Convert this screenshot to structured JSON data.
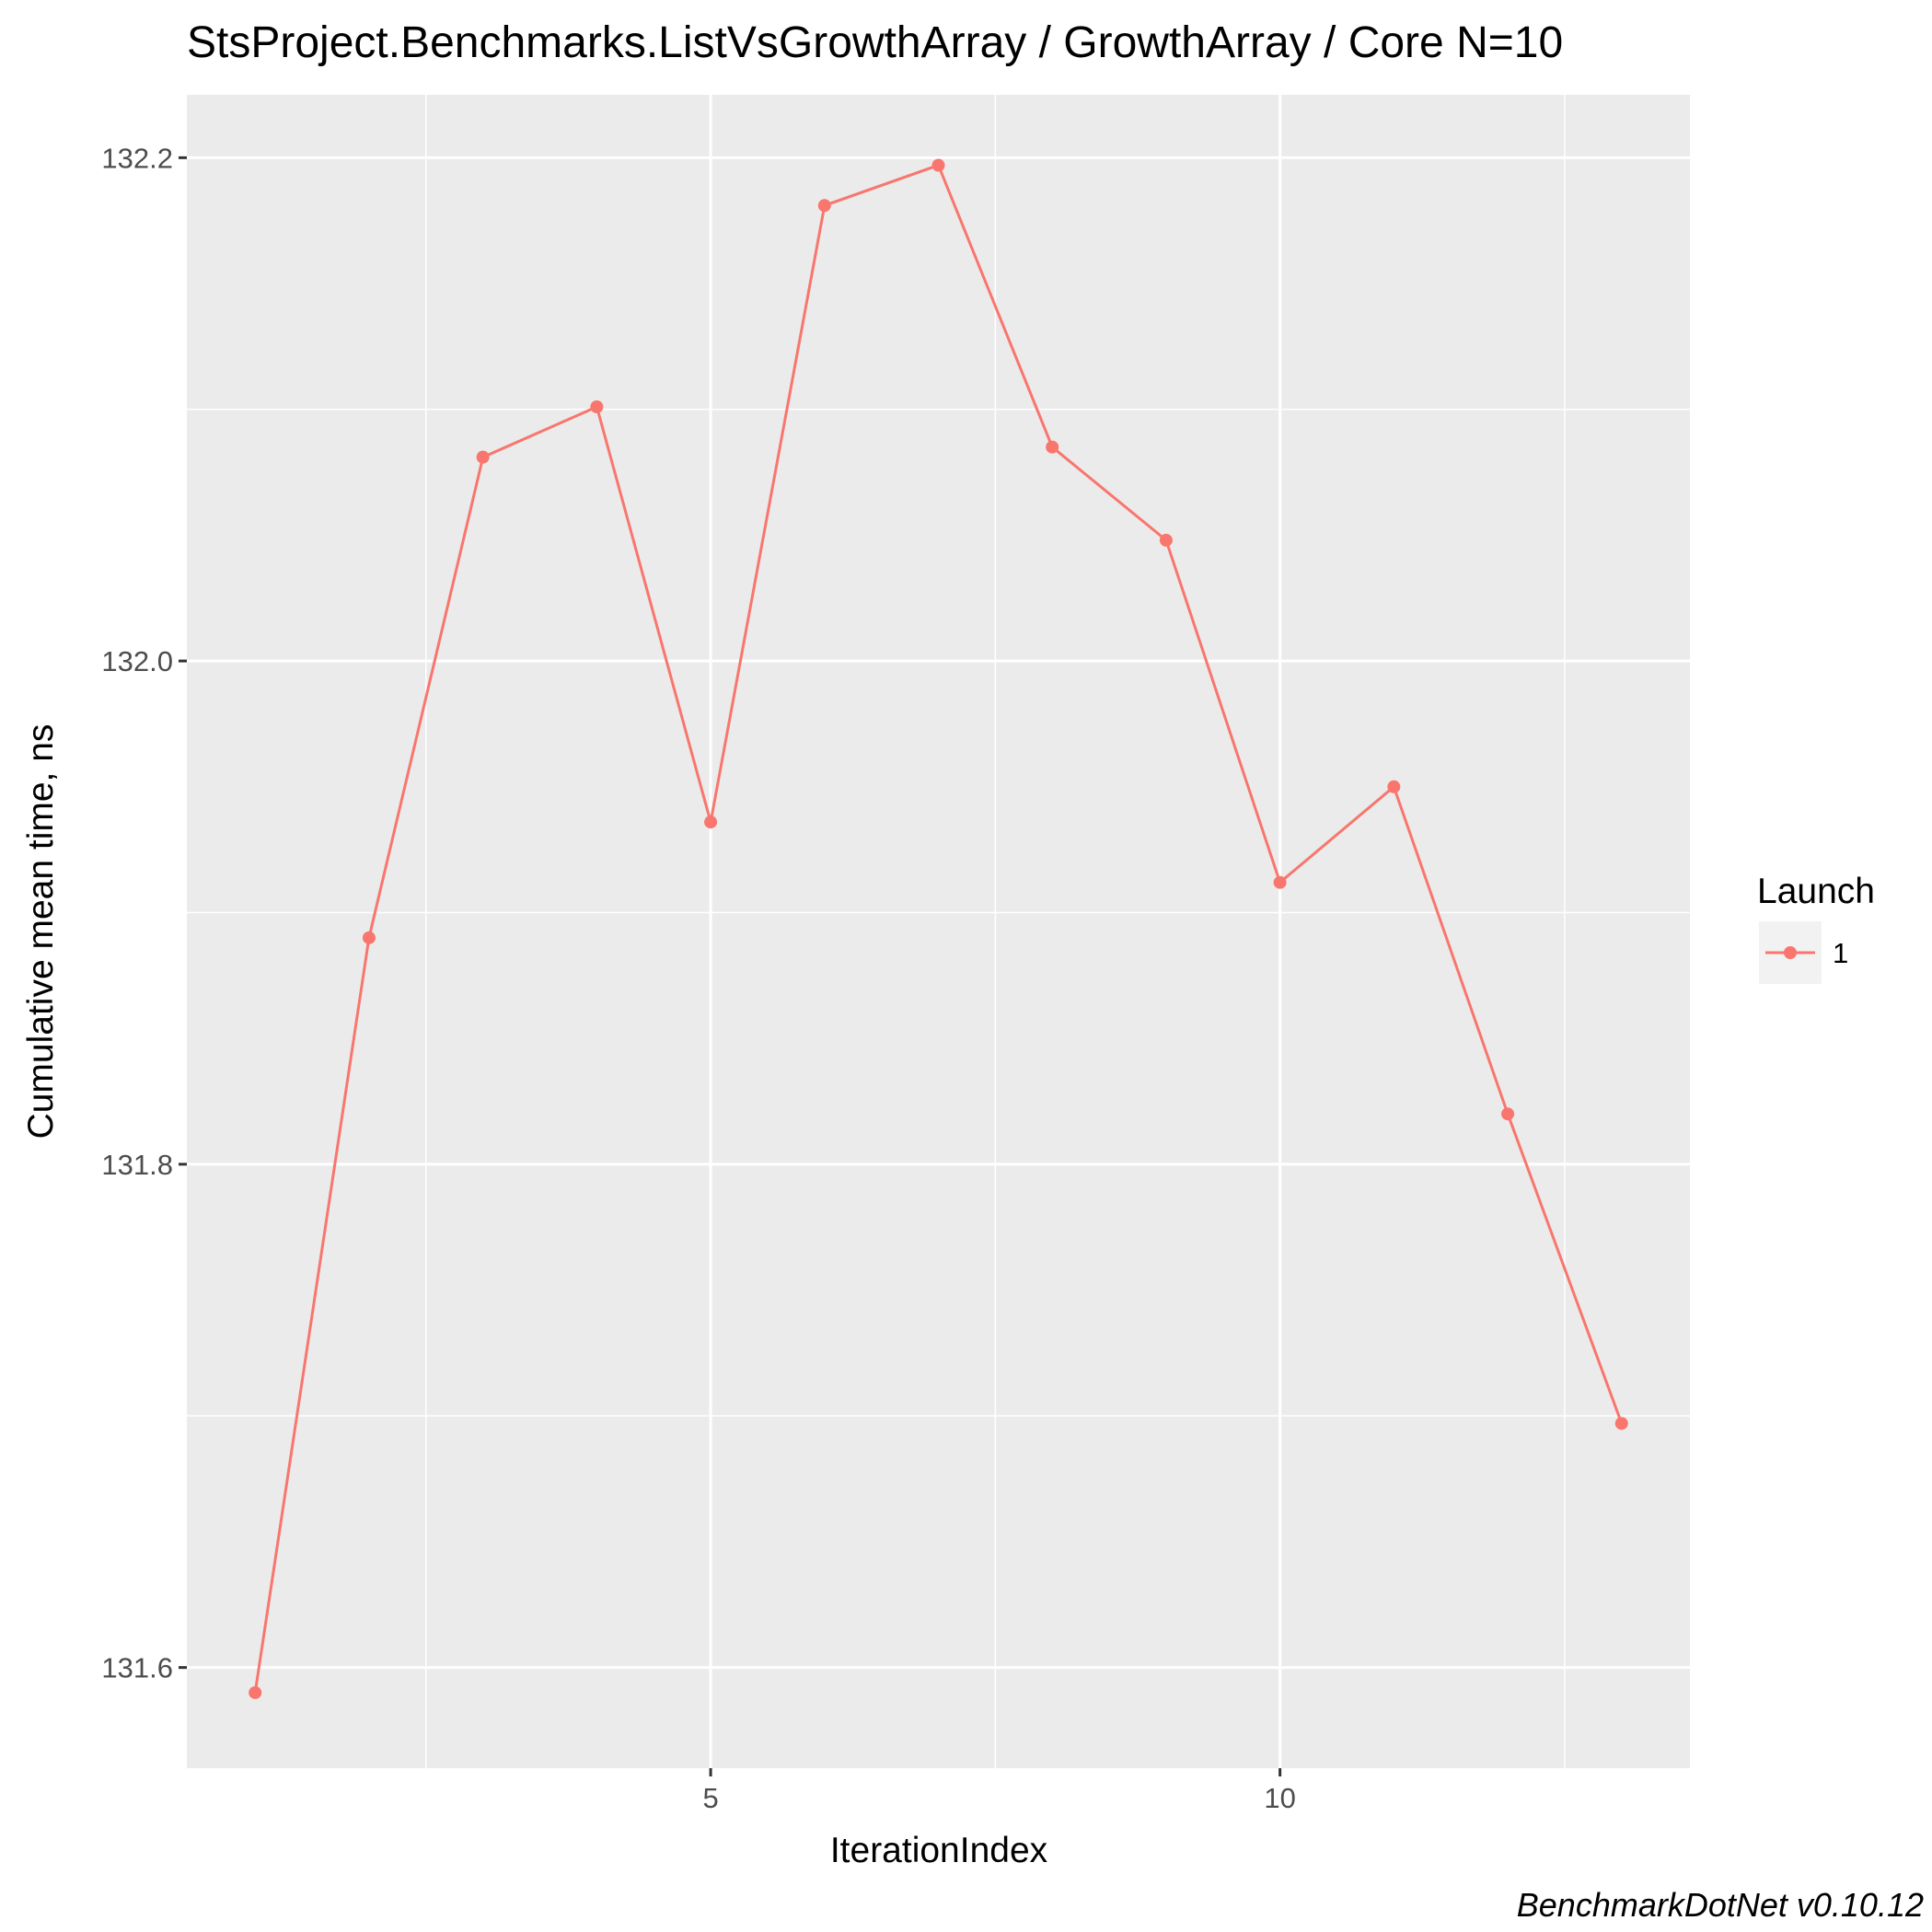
{
  "chart_data": {
    "type": "line",
    "title": "StsProject.Benchmarks.ListVsGrowthArray / GrowthArray / Core N=10",
    "xlabel": "IterationIndex",
    "ylabel": "Cumulative mean time, ns",
    "caption": "BenchmarkDotNet v0.10.12",
    "x_ticks": [
      5,
      10
    ],
    "x_tick_labels": [
      "5",
      "10"
    ],
    "y_ticks": [
      131.6,
      131.8,
      132.0,
      132.2
    ],
    "y_tick_labels": [
      "131.6",
      "131.8",
      "132.0",
      "132.2"
    ],
    "xlim": [
      0.4,
      13.6
    ],
    "ylim": [
      131.56,
      132.225
    ],
    "grid": true,
    "legend": {
      "title": "Launch",
      "position": "right"
    },
    "series": [
      {
        "name": "1",
        "color": "#f8766d",
        "x": [
          1,
          2,
          3,
          4,
          5,
          6,
          7,
          8,
          9,
          10,
          11,
          12,
          13
        ],
        "y": [
          131.59,
          131.89,
          132.081,
          132.101,
          131.936,
          132.181,
          132.197,
          132.085,
          132.048,
          131.912,
          131.95,
          131.82,
          131.697
        ]
      }
    ]
  }
}
